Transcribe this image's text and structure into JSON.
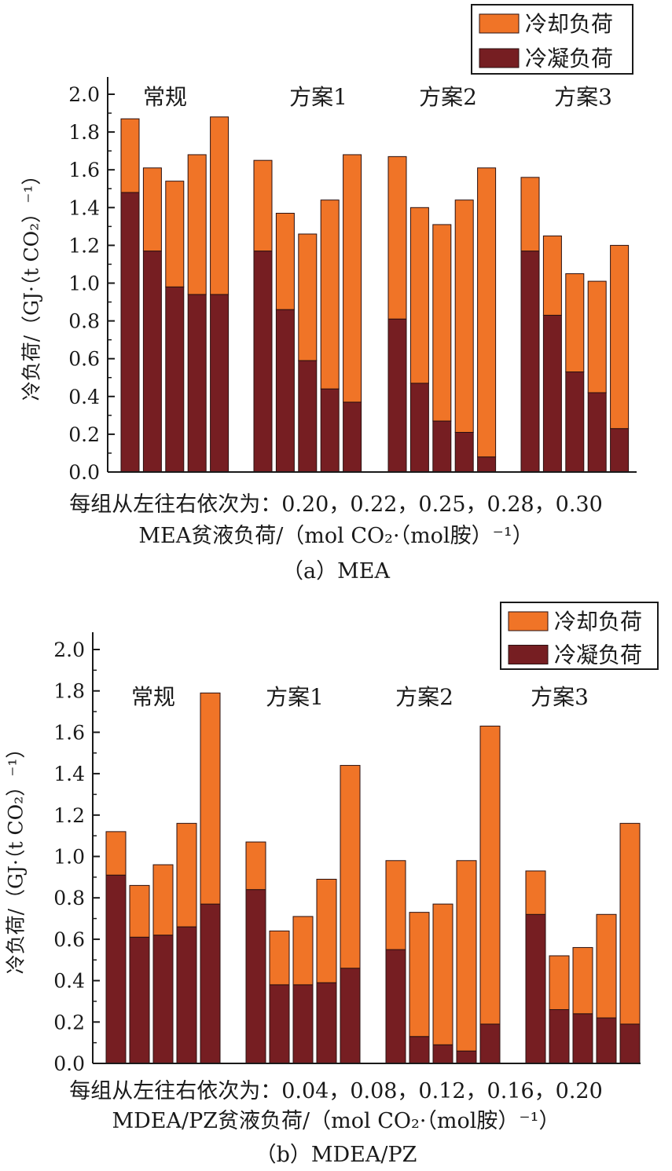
{
  "colors": {
    "cooling": "#f07427",
    "condensing": "#761e22",
    "axis": "#1a1a1a"
  },
  "chart_data": [
    {
      "type": "bar",
      "stacked": true,
      "panel": "a",
      "ylabel": "冷负荷/（GJ·（t CO₂）⁻¹）",
      "ylim": [
        0,
        2.0
      ],
      "yticks": [
        "0.0",
        "0.2",
        "0.4",
        "0.6",
        "0.8",
        "1.0",
        "1.2",
        "1.4",
        "1.6",
        "1.8",
        "2.0"
      ],
      "legend": [
        "冷却负荷",
        "冷凝负荷"
      ],
      "legend_position": "top-right",
      "groups": [
        "常规",
        "方案1",
        "方案2",
        "方案3"
      ],
      "x_values": [
        0.2,
        0.22,
        0.25,
        0.28,
        0.3
      ],
      "series": [
        {
          "name": "冷凝负荷",
          "values": [
            [
              1.48,
              1.17,
              0.98,
              0.94,
              0.94
            ],
            [
              1.17,
              0.86,
              0.59,
              0.44,
              0.37
            ],
            [
              0.81,
              0.47,
              0.27,
              0.21,
              0.08
            ],
            [
              1.17,
              0.83,
              0.53,
              0.42,
              0.23
            ]
          ]
        },
        {
          "name": "冷却负荷",
          "values": [
            [
              0.39,
              0.44,
              0.56,
              0.74,
              0.94
            ],
            [
              0.48,
              0.51,
              0.67,
              1.0,
              1.31
            ],
            [
              0.86,
              0.93,
              1.04,
              1.23,
              1.53
            ],
            [
              0.39,
              0.42,
              0.52,
              0.59,
              0.97
            ]
          ]
        }
      ],
      "note": "每组从左往右依次为：0.20，0.22，0.25，0.28，0.30",
      "xlabel": "MEA贫液负荷/（mol CO₂·（mol胺）⁻¹）",
      "caption": "（a）MEA"
    },
    {
      "type": "bar",
      "stacked": true,
      "panel": "b",
      "ylabel": "冷负荷/（GJ·（t CO₂）⁻¹）",
      "ylim": [
        0,
        2.0
      ],
      "yticks": [
        "0.0",
        "0.2",
        "0.4",
        "0.6",
        "0.8",
        "1.0",
        "1.2",
        "1.4",
        "1.6",
        "1.8",
        "2.0"
      ],
      "legend": [
        "冷却负荷",
        "冷凝负荷"
      ],
      "legend_position": "top-right",
      "groups": [
        "常规",
        "方案1",
        "方案2",
        "方案3"
      ],
      "x_values": [
        0.04,
        0.08,
        0.12,
        0.16,
        0.2
      ],
      "series": [
        {
          "name": "冷凝负荷",
          "values": [
            [
              0.91,
              0.61,
              0.62,
              0.66,
              0.77
            ],
            [
              0.84,
              0.38,
              0.38,
              0.39,
              0.46
            ],
            [
              0.55,
              0.13,
              0.09,
              0.06,
              0.19
            ],
            [
              0.72,
              0.26,
              0.24,
              0.22,
              0.19
            ]
          ]
        },
        {
          "name": "冷却负荷",
          "values": [
            [
              0.21,
              0.25,
              0.34,
              0.5,
              1.02
            ],
            [
              0.23,
              0.26,
              0.33,
              0.5,
              0.98
            ],
            [
              0.43,
              0.6,
              0.68,
              0.92,
              1.44
            ],
            [
              0.21,
              0.26,
              0.32,
              0.5,
              0.97
            ]
          ]
        }
      ],
      "note": "每组从左往右依次为：0.04，0.08，0.12，0.16，0.20",
      "xlabel": "MDEA/PZ贫液负荷/（mol CO₂·（mol胺）⁻¹）",
      "caption": "（b）MDEA/PZ"
    }
  ]
}
